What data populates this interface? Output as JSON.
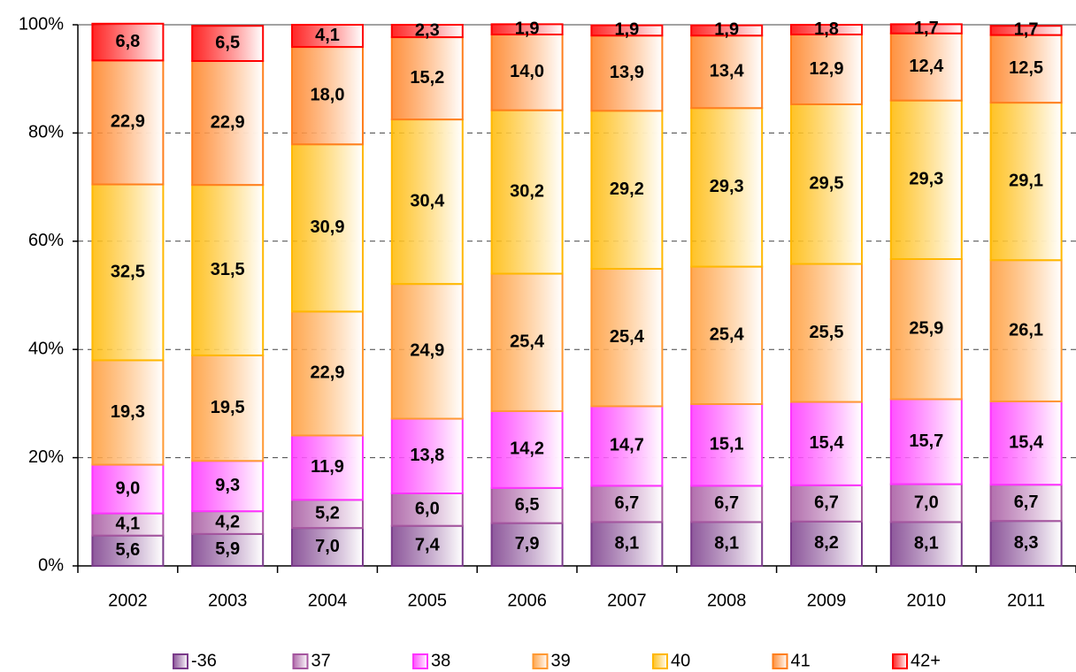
{
  "chart_data": {
    "type": "stacked_bar",
    "categories": [
      "2002",
      "2003",
      "2004",
      "2005",
      "2006",
      "2007",
      "2008",
      "2009",
      "2010",
      "2011"
    ],
    "ylim": [
      0,
      100
    ],
    "yticks": [
      {
        "value": 0,
        "label": "0%"
      },
      {
        "value": 20,
        "label": "20%"
      },
      {
        "value": 40,
        "label": "40%"
      },
      {
        "value": 60,
        "label": "60%"
      },
      {
        "value": 80,
        "label": "80%"
      },
      {
        "value": 100,
        "label": "100%"
      }
    ],
    "grid": true,
    "legend": "bottom",
    "series": [
      {
        "name": "-36",
        "color": "#7a3b8a",
        "values": [
          5.6,
          5.9,
          7.0,
          7.4,
          7.9,
          8.1,
          8.1,
          8.2,
          8.1,
          8.3
        ],
        "value_labels": [
          "5,6",
          "5,9",
          "7,0",
          "7,4",
          "7,9",
          "8,1",
          "8,1",
          "8,2",
          "8,1",
          "8,3"
        ]
      },
      {
        "name": "37",
        "color": "#a5569f",
        "values": [
          4.1,
          4.2,
          5.2,
          6.0,
          6.5,
          6.7,
          6.7,
          6.7,
          7.0,
          6.7
        ],
        "value_labels": [
          "4,1",
          "4,2",
          "5,2",
          "6,0",
          "6,5",
          "6,7",
          "6,7",
          "6,7",
          "7,0",
          "6,7"
        ]
      },
      {
        "name": "38",
        "color": "#ff33ff",
        "values": [
          9.0,
          9.3,
          11.9,
          13.8,
          14.2,
          14.7,
          15.1,
          15.4,
          15.7,
          15.4
        ],
        "value_labels": [
          "9,0",
          "9,3",
          "11,9",
          "13,8",
          "14,2",
          "14,7",
          "15,1",
          "15,4",
          "15,7",
          "15,4"
        ]
      },
      {
        "name": "39",
        "color": "#ff9933",
        "values": [
          19.3,
          19.5,
          22.9,
          24.9,
          25.4,
          25.4,
          25.4,
          25.5,
          25.9,
          26.1
        ],
        "value_labels": [
          "19,3",
          "19,5",
          "22,9",
          "24,9",
          "25,4",
          "25,4",
          "25,4",
          "25,5",
          "25,9",
          "26,1"
        ]
      },
      {
        "name": "40",
        "color": "#ffb800",
        "values": [
          32.5,
          31.5,
          30.9,
          30.4,
          30.2,
          29.2,
          29.3,
          29.5,
          29.3,
          29.1
        ],
        "value_labels": [
          "32,5",
          "31,5",
          "30,9",
          "30,4",
          "30,2",
          "29,2",
          "29,3",
          "29,5",
          "29,3",
          "29,1"
        ]
      },
      {
        "name": "41",
        "color": "#ff7f1e",
        "values": [
          22.9,
          22.9,
          18.0,
          15.2,
          14.0,
          13.9,
          13.4,
          12.9,
          12.4,
          12.5
        ],
        "value_labels": [
          "22,9",
          "22,9",
          "18,0",
          "15,2",
          "14,0",
          "13,9",
          "13,4",
          "12,9",
          "12,4",
          "12,5"
        ]
      },
      {
        "name": "42+",
        "color": "#ff0000",
        "values": [
          6.8,
          6.5,
          4.1,
          2.3,
          1.9,
          1.9,
          1.9,
          1.8,
          1.7,
          1.7
        ],
        "value_labels": [
          "6,8",
          "6,5",
          "4,1",
          "2,3",
          "1,9",
          "1,9",
          "1,9",
          "1,8",
          "1,7",
          "1,7"
        ]
      }
    ]
  }
}
